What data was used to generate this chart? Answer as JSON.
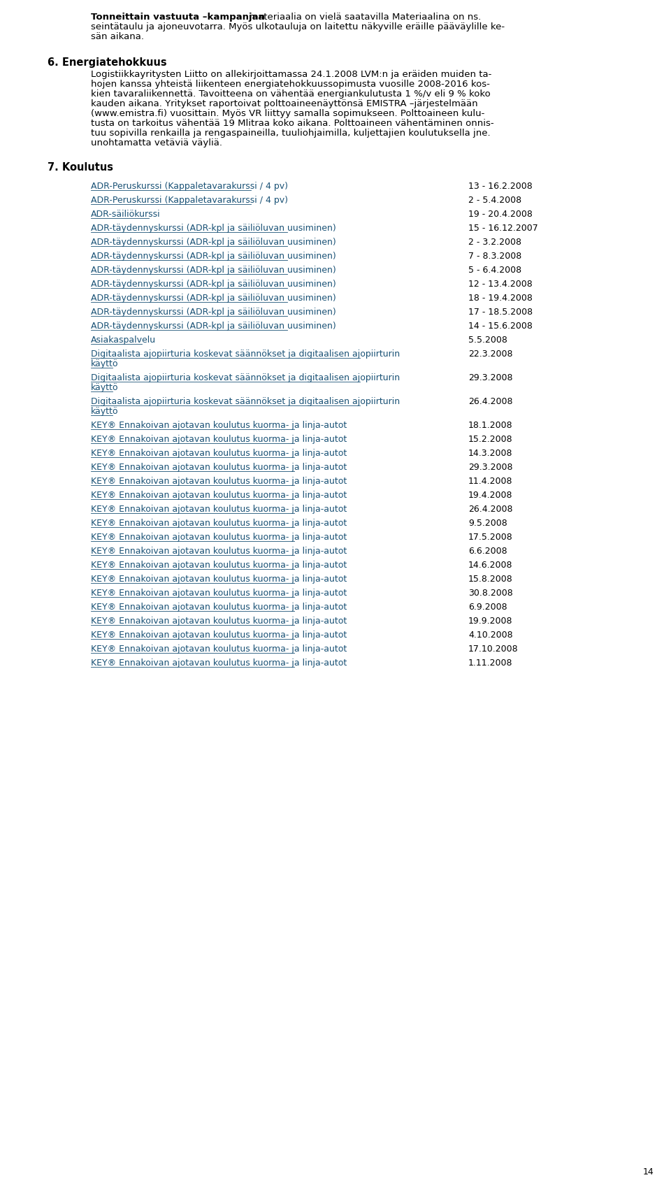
{
  "bg_color": "#ffffff",
  "text_color": "#000000",
  "link_color": "#1a5276",
  "heading_color": "#000000",
  "page_number": "14",
  "intro_paragraph": {
    "bold_part": "Tonneittain vastuuta –kampanjan",
    "normal_part": " materiaalia on vielä saatavilla Materiaalina on ns.\nseintätaulu ja ajoneuvotarra. Myös ulkotauluja on laitettu näkyville eräille pääväylille ke-\nsän aikana."
  },
  "section6": {
    "heading": "6. Energiatehokkuus",
    "body": "Logistiikkayritysten Liitto on allekirjoittamassa 24.1.2008 LVM:n ja eräiden muiden ta-\nhojen kanssa yhteistä liikenteen energiatehokkuussopimusta vuosille 2008-2016 kos-\nkien tavaraliikennettä. Tavoitteena on vähentää energiankulutusta 1 %/v eli 9 % koko\nkauden aikana. Yritykset raportoivat polttoaineenäyttönsä EMISTRA –järjestelmään\n(www.emistra.fi) vuosittain. Myös VR liittyy samalla sopimukseen. Polttoaineen kulu-\ntusta on tarkoitus vähentää 19 Mlitraa koko aikana. Polttoaineen vähentäminen onnis-\ntuu sopivilla renkailla ja rengaspaineilla, tuuliohjaimilla, kuljettajien koulutuksella jne.\nunohtamatta vetäviä väyliä."
  },
  "section7": {
    "heading": "7. Koulutus",
    "items": [
      {
        "text": "ADR-Peruskurssi (Kappaletavarakurssi / 4 pv)",
        "date": "13 - 16.2.2008",
        "link": true,
        "multiline": false
      },
      {
        "text": "ADR-Peruskurssi (Kappaletavarakurssi / 4 pv)",
        "date": "2 - 5.4.2008",
        "link": true,
        "multiline": false
      },
      {
        "text": "ADR-säiliökurssi",
        "date": "19 - 20.4.2008",
        "link": true,
        "multiline": false
      },
      {
        "text": "ADR-täydennyskurssi (ADR-kpl ja säiliöluvan uusiminen)",
        "date": "15 - 16.12.2007",
        "link": true,
        "multiline": false
      },
      {
        "text": "ADR-täydennyskurssi (ADR-kpl ja säiliöluvan uusiminen)",
        "date": "2 - 3.2.2008",
        "link": true,
        "multiline": false
      },
      {
        "text": "ADR-täydennyskurssi (ADR-kpl ja säiliöluvan uusiminen)",
        "date": "7 - 8.3.2008",
        "link": true,
        "multiline": false
      },
      {
        "text": "ADR-täydennyskurssi (ADR-kpl ja säiliöluvan uusiminen)",
        "date": "5 - 6.4.2008",
        "link": true,
        "multiline": false
      },
      {
        "text": "ADR-täydennyskurssi (ADR-kpl ja säiliöluvan uusiminen)",
        "date": "12 - 13.4.2008",
        "link": true,
        "multiline": false
      },
      {
        "text": "ADR-täydennyskurssi (ADR-kpl ja säiliöluvan uusiminen)",
        "date": "18 - 19.4.2008",
        "link": true,
        "multiline": false
      },
      {
        "text": "ADR-täydennyskurssi (ADR-kpl ja säiliöluvan uusiminen)",
        "date": "17 - 18.5.2008",
        "link": true,
        "multiline": false
      },
      {
        "text": "ADR-täydennyskurssi (ADR-kpl ja säiliöluvan uusiminen)",
        "date": "14 - 15.6.2008",
        "link": true,
        "multiline": false
      },
      {
        "text": "Asiakaspalvelu",
        "date": "5.5.2008",
        "link": true,
        "multiline": false
      },
      {
        "text": "Digitaalista ajopiirturia koskevat säännökset ja digitaalisen ajopiirturin\nkäyttö",
        "date": "22.3.2008",
        "link": true,
        "multiline": true
      },
      {
        "text": "Digitaalista ajopiirturia koskevat säännökset ja digitaalisen ajopiirturin\nkäyttö",
        "date": "29.3.2008",
        "link": true,
        "multiline": true
      },
      {
        "text": "Digitaalista ajopiirturia koskevat säännökset ja digitaalisen ajopiirturin\nkäyttö",
        "date": "26.4.2008",
        "link": true,
        "multiline": true
      },
      {
        "text": "KEY® Ennakoivan ajotavan koulutus kuorma- ja linja-autot",
        "date": "18.1.2008",
        "link": true,
        "multiline": false
      },
      {
        "text": "KEY® Ennakoivan ajotavan koulutus kuorma- ja linja-autot",
        "date": "15.2.2008",
        "link": true,
        "multiline": false
      },
      {
        "text": "KEY® Ennakoivan ajotavan koulutus kuorma- ja linja-autot",
        "date": "14.3.2008",
        "link": true,
        "multiline": false
      },
      {
        "text": "KEY® Ennakoivan ajotavan koulutus kuorma- ja linja-autot",
        "date": "29.3.2008",
        "link": true,
        "multiline": false
      },
      {
        "text": "KEY® Ennakoivan ajotavan koulutus kuorma- ja linja-autot",
        "date": "11.4.2008",
        "link": true,
        "multiline": false
      },
      {
        "text": "KEY® Ennakoivan ajotavan koulutus kuorma- ja linja-autot",
        "date": "19.4.2008",
        "link": true,
        "multiline": false
      },
      {
        "text": "KEY® Ennakoivan ajotavan koulutus kuorma- ja linja-autot",
        "date": "26.4.2008",
        "link": true,
        "multiline": false
      },
      {
        "text": "KEY® Ennakoivan ajotavan koulutus kuorma- ja linja-autot",
        "date": "9.5.2008",
        "link": true,
        "multiline": false
      },
      {
        "text": "KEY® Ennakoivan ajotavan koulutus kuorma- ja linja-autot",
        "date": "17.5.2008",
        "link": true,
        "multiline": false
      },
      {
        "text": "KEY® Ennakoivan ajotavan koulutus kuorma- ja linja-autot",
        "date": "6.6.2008",
        "link": true,
        "multiline": false
      },
      {
        "text": "KEY® Ennakoivan ajotavan koulutus kuorma- ja linja-autot",
        "date": "14.6.2008",
        "link": true,
        "multiline": false
      },
      {
        "text": "KEY® Ennakoivan ajotavan koulutus kuorma- ja linja-autot",
        "date": "15.8.2008",
        "link": true,
        "multiline": false
      },
      {
        "text": "KEY® Ennakoivan ajotavan koulutus kuorma- ja linja-autot",
        "date": "30.8.2008",
        "link": true,
        "multiline": false
      },
      {
        "text": "KEY® Ennakoivan ajotavan koulutus kuorma- ja linja-autot",
        "date": "6.9.2008",
        "link": true,
        "multiline": false
      },
      {
        "text": "KEY® Ennakoivan ajotavan koulutus kuorma- ja linja-autot",
        "date": "19.9.2008",
        "link": true,
        "multiline": false
      },
      {
        "text": "KEY® Ennakoivan ajotavan koulutus kuorma- ja linja-autot",
        "date": "4.10.2008",
        "link": true,
        "multiline": false
      },
      {
        "text": "KEY® Ennakoivan ajotavan koulutus kuorma- ja linja-autot",
        "date": "17.10.2008",
        "link": true,
        "multiline": false
      },
      {
        "text": "KEY® Ennakoivan ajotavan koulutus kuorma- ja linja-autot",
        "date": "1.11.2008",
        "link": true,
        "multiline": false
      }
    ]
  }
}
